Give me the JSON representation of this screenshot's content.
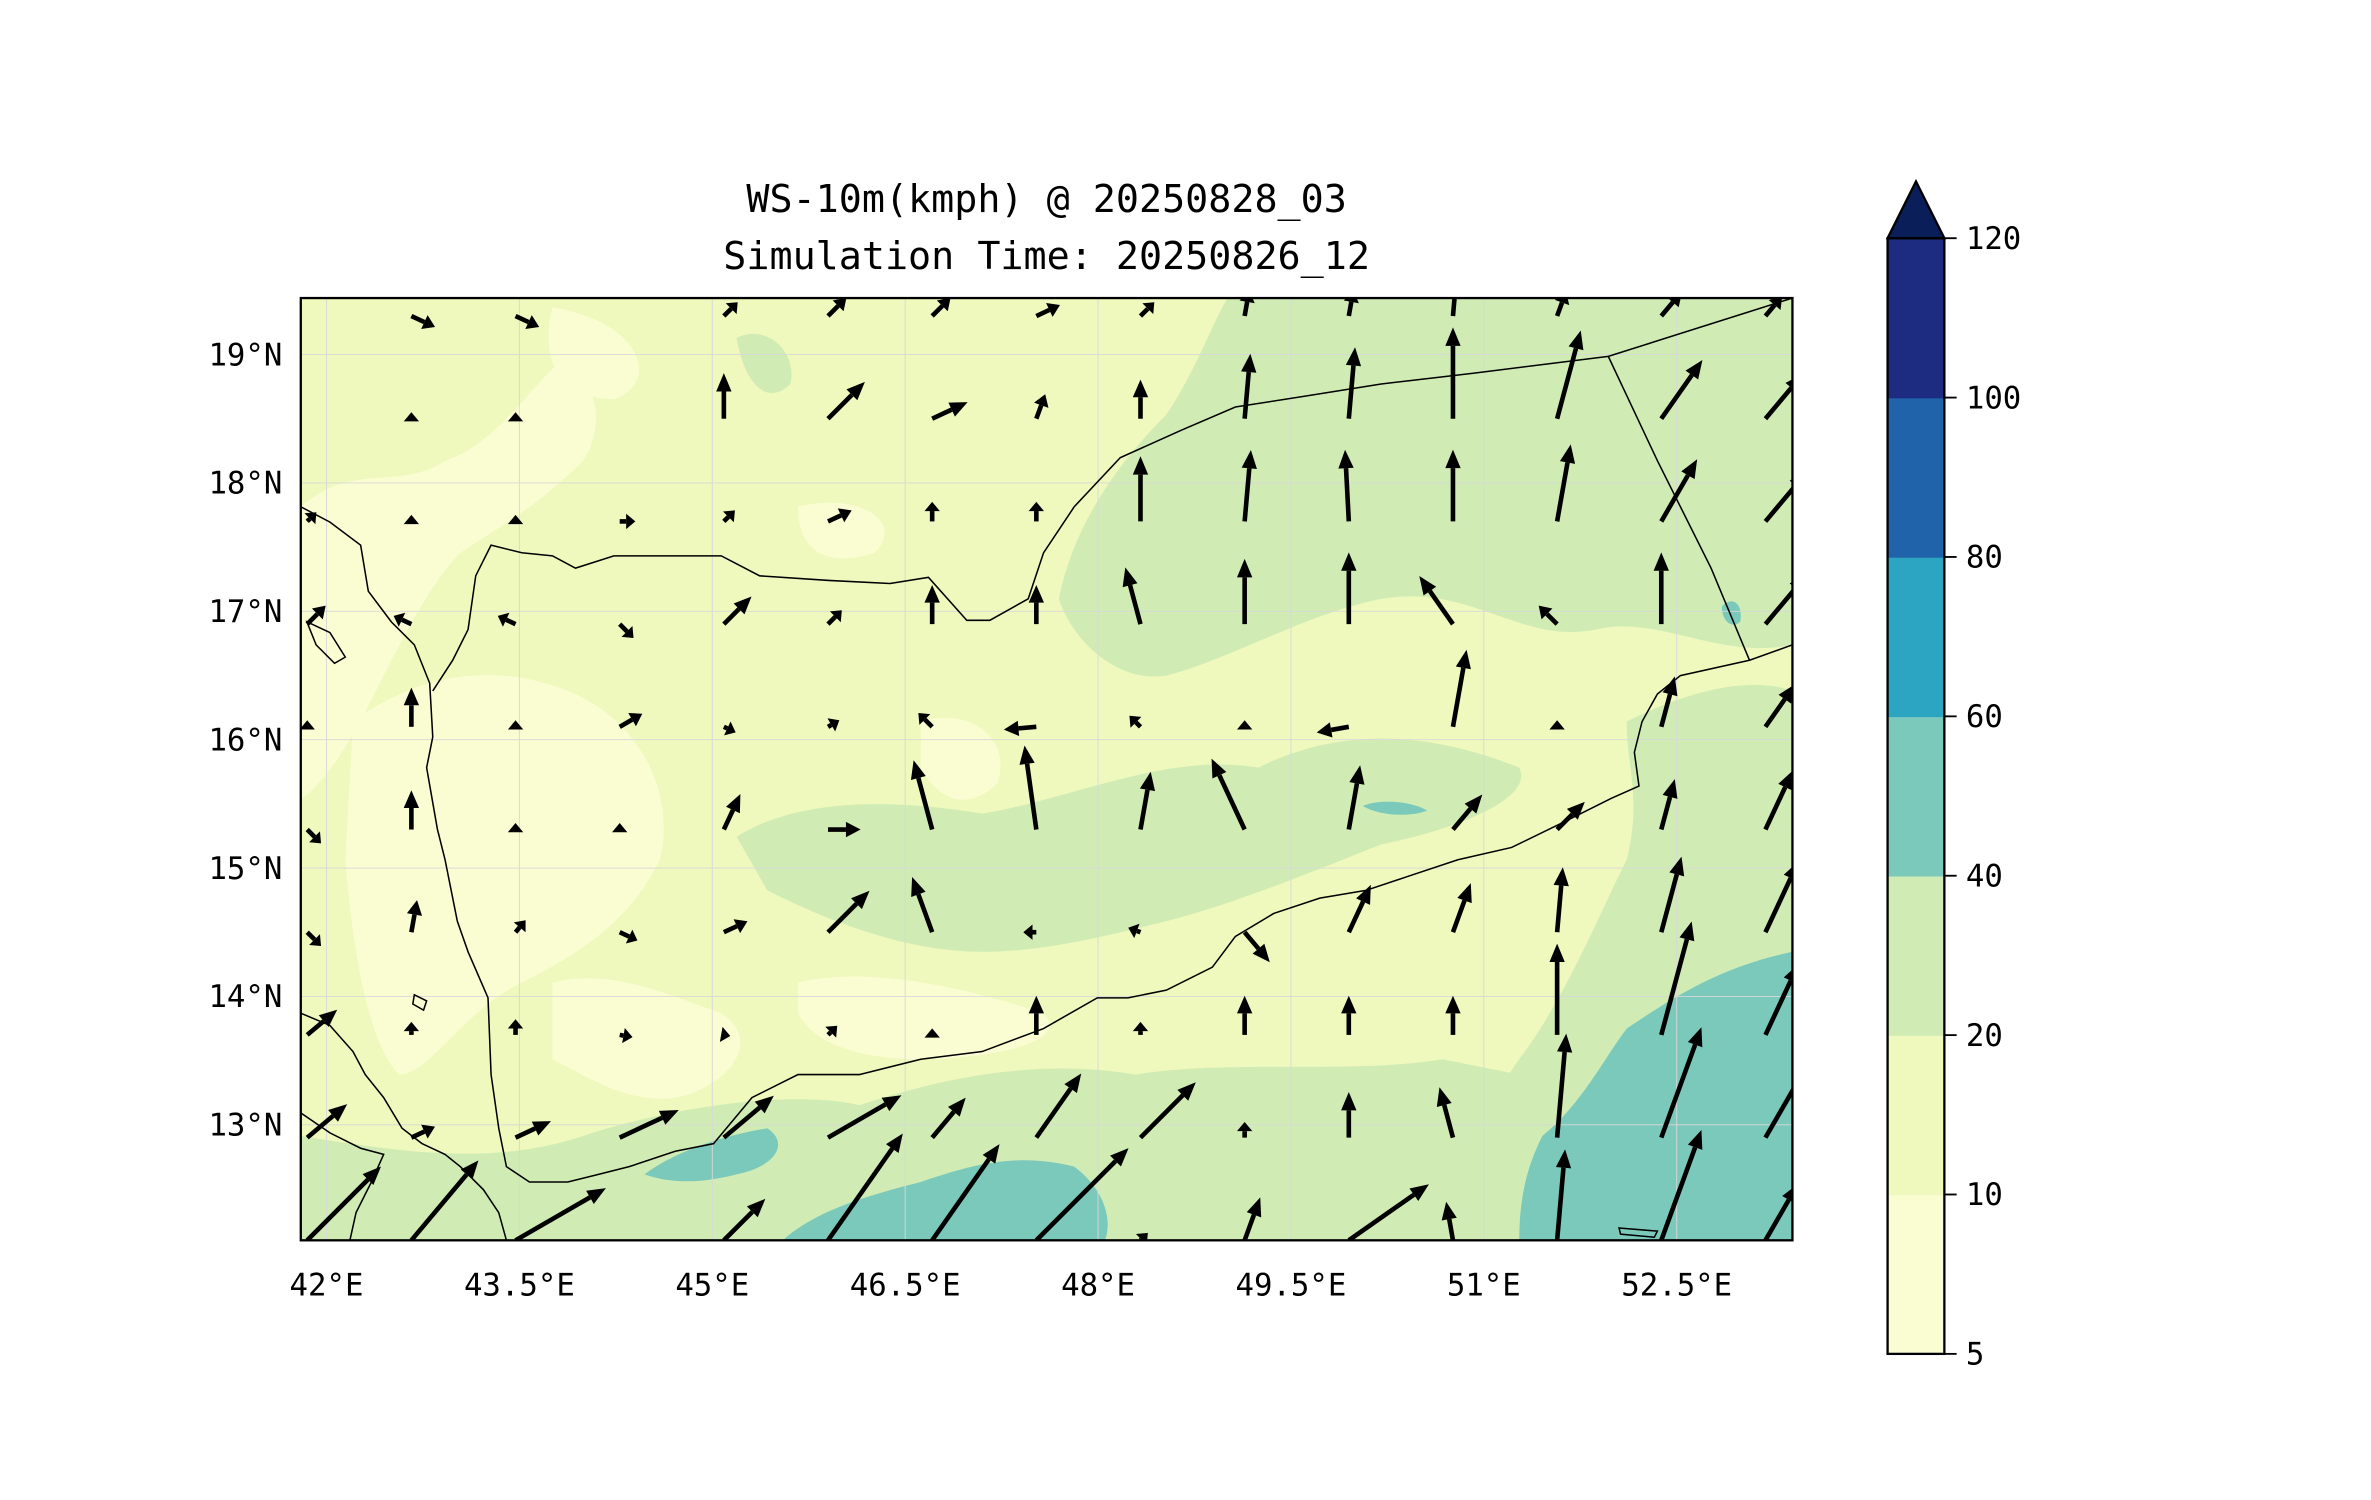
{
  "chart_data": {
    "type": "heatmap",
    "title": "WS-10m(kmph) @ 20250828_03",
    "subtitle": "Simulation Time: 20250826_12",
    "xlabel": "",
    "ylabel": "",
    "xlim": [
      41.8,
      53.4
    ],
    "ylim": [
      12.1,
      19.44
    ],
    "x_ticks": [
      42,
      43.5,
      45,
      46.5,
      48,
      49.5,
      51,
      52.5
    ],
    "x_tick_labels": [
      "42°E",
      "43.5°E",
      "45°E",
      "46.5°E",
      "48°E",
      "49.5°E",
      "51°E",
      "52.5°E"
    ],
    "y_ticks": [
      19,
      18,
      17,
      16,
      15,
      14,
      13
    ],
    "y_tick_labels": [
      "19°N",
      "18°N",
      "17°N",
      "16°N",
      "15°N",
      "14°N",
      "13°N"
    ],
    "grid": true,
    "colorbar": {
      "levels": [
        5,
        10,
        20,
        40,
        60,
        80,
        100,
        120
      ],
      "tick_labels": [
        "5",
        "10",
        "20",
        "40",
        "60",
        "80",
        "100",
        "120"
      ],
      "colors": [
        "#fafdd2",
        "#eff8bd",
        "#d0ecb4",
        "#7bc9bb",
        "#2ca5c3",
        "#2163aa",
        "#1d2c80"
      ],
      "extend_color": "#0a1f5a",
      "extend": "max",
      "placement": "right"
    },
    "wind_vectors": {
      "description": "bearing (deg, direction arrow points) and relative magnitude",
      "lons": [
        41.85,
        42.66,
        43.47,
        44.28,
        45.09,
        45.9,
        46.71,
        47.52,
        48.33,
        49.14,
        49.95,
        50.76,
        51.57,
        52.38,
        53.19
      ],
      "lats": [
        19.3,
        18.5,
        17.7,
        16.9,
        16.1,
        15.3,
        14.5,
        13.7,
        12.9,
        12.1
      ],
      "rows": [
        [
          [
            0,
            0
          ],
          [
            115,
            20
          ],
          [
            115,
            20
          ],
          [
            0,
            0
          ],
          [
            45,
            15
          ],
          [
            45,
            20
          ],
          [
            45,
            20
          ],
          [
            65,
            20
          ],
          [
            45,
            15
          ],
          [
            10,
            20
          ],
          [
            10,
            20
          ],
          [
            5,
            25
          ],
          [
            20,
            20
          ],
          [
            40,
            25
          ],
          [
            40,
            20
          ]
        ],
        [
          [
            0,
            0
          ],
          [
            0,
            5
          ],
          [
            0,
            5
          ],
          [
            0,
            0
          ],
          [
            0,
            35
          ],
          [
            45,
            40
          ],
          [
            65,
            30
          ],
          [
            20,
            20
          ],
          [
            0,
            30
          ],
          [
            5,
            50
          ],
          [
            5,
            55
          ],
          [
            0,
            70
          ],
          [
            15,
            70
          ],
          [
            35,
            55
          ],
          [
            40,
            45
          ]
        ],
        [
          [
            45,
            10
          ],
          [
            0,
            5
          ],
          [
            0,
            5
          ],
          [
            90,
            12
          ],
          [
            45,
            12
          ],
          [
            65,
            20
          ],
          [
            0,
            15
          ],
          [
            0,
            15
          ],
          [
            0,
            50
          ],
          [
            5,
            55
          ],
          [
            -3,
            55
          ],
          [
            0,
            55
          ],
          [
            10,
            60
          ],
          [
            30,
            55
          ],
          [
            40,
            50
          ]
        ],
        [
          [
            45,
            20
          ],
          [
            -65,
            15
          ],
          [
            -65,
            15
          ],
          [
            135,
            15
          ],
          [
            45,
            30
          ],
          [
            45,
            15
          ],
          [
            0,
            30
          ],
          [
            0,
            30
          ],
          [
            -15,
            45
          ],
          [
            0,
            50
          ],
          [
            0,
            55
          ],
          [
            -35,
            45
          ],
          [
            -45,
            20
          ],
          [
            0,
            55
          ],
          [
            40,
            50
          ]
        ],
        [
          [
            0,
            5
          ],
          [
            0,
            30
          ],
          [
            0,
            5
          ],
          [
            60,
            20
          ],
          [
            115,
            10
          ],
          [
            60,
            10
          ],
          [
            -45,
            15
          ],
          [
            -95,
            25
          ],
          [
            -45,
            12
          ],
          [
            0,
            5
          ],
          [
            -100,
            25
          ],
          [
            10,
            60
          ],
          [
            0,
            5
          ],
          [
            15,
            40
          ],
          [
            35,
            40
          ]
        ],
        [
          [
            135,
            15
          ],
          [
            0,
            30
          ],
          [
            0,
            5
          ],
          [
            0,
            5
          ],
          [
            25,
            30
          ],
          [
            90,
            25
          ],
          [
            -15,
            55
          ],
          [
            -8,
            65
          ],
          [
            10,
            45
          ],
          [
            -25,
            60
          ],
          [
            10,
            50
          ],
          [
            40,
            35
          ],
          [
            45,
            30
          ],
          [
            15,
            40
          ],
          [
            25,
            50
          ]
        ],
        [
          [
            135,
            15
          ],
          [
            10,
            25
          ],
          [
            40,
            12
          ],
          [
            115,
            15
          ],
          [
            65,
            20
          ],
          [
            45,
            45
          ],
          [
            -20,
            45
          ],
          [
            -90,
            10
          ],
          [
            -70,
            10
          ],
          [
            140,
            30
          ],
          [
            25,
            40
          ],
          [
            20,
            40
          ],
          [
            5,
            50
          ],
          [
            15,
            60
          ],
          [
            25,
            60
          ]
        ],
        [
          [
            50,
            30
          ],
          [
            0,
            10
          ],
          [
            0,
            12
          ],
          [
            100,
            10
          ],
          [
            100,
            5
          ],
          [
            45,
            10
          ],
          [
            0,
            5
          ],
          [
            0,
            30
          ],
          [
            0,
            10
          ],
          [
            0,
            30
          ],
          [
            0,
            30
          ],
          [
            0,
            30
          ],
          [
            0,
            70
          ],
          [
            15,
            90
          ],
          [
            25,
            60
          ]
        ],
        [
          [
            50,
            40
          ],
          [
            65,
            20
          ],
          [
            65,
            30
          ],
          [
            65,
            50
          ],
          [
            50,
            50
          ],
          [
            60,
            65
          ],
          [
            40,
            40
          ],
          [
            35,
            60
          ],
          [
            45,
            60
          ],
          [
            0,
            12
          ],
          [
            0,
            35
          ],
          [
            -15,
            40
          ],
          [
            5,
            80
          ],
          [
            20,
            90
          ],
          [
            30,
            70
          ]
        ],
        [
          [
            45,
            80
          ],
          [
            40,
            80
          ],
          [
            60,
            80
          ],
          [
            0,
            0
          ],
          [
            45,
            45
          ],
          [
            35,
            100
          ],
          [
            35,
            90
          ],
          [
            45,
            100
          ],
          [
            45,
            8
          ],
          [
            20,
            35
          ],
          [
            55,
            75
          ],
          [
            -10,
            30
          ],
          [
            5,
            70
          ],
          [
            20,
            90
          ],
          [
            30,
            50
          ]
        ]
      ]
    }
  }
}
